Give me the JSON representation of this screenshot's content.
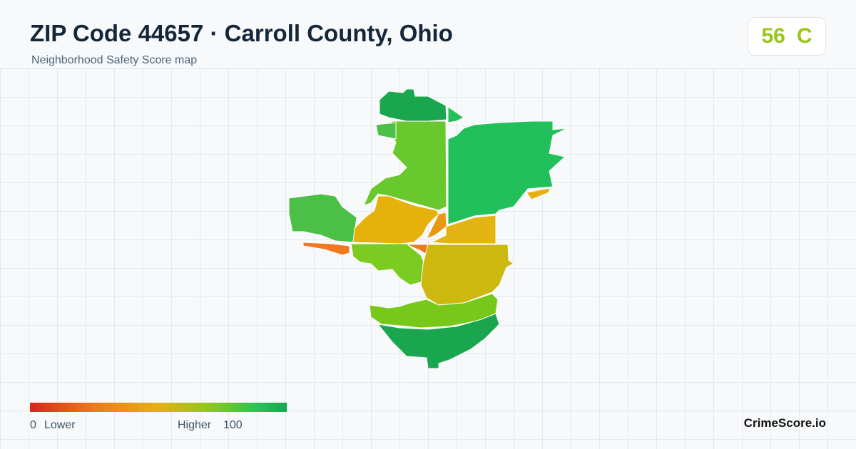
{
  "header": {
    "title": "ZIP Code 44657 · Carroll County, Ohio",
    "subtitle": "Neighborhood Safety Score map"
  },
  "score": {
    "value": 56,
    "grade": "C"
  },
  "legend": {
    "min": 0,
    "min_label": "Lower",
    "max_label": "Higher",
    "max": 100
  },
  "brand": "CrimeScore.io"
}
